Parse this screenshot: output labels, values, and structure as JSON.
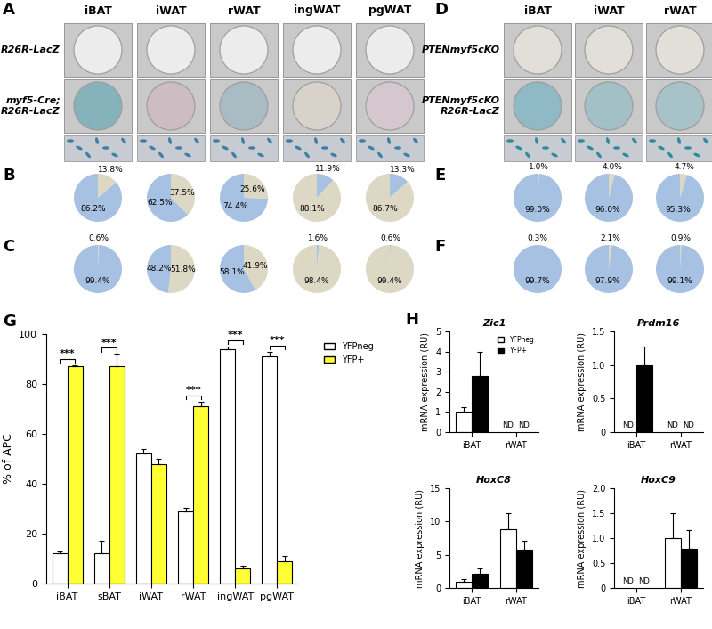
{
  "images": [
    {
      "panel": "A",
      "columns": [
        "iBAT",
        "iWAT",
        "rWAT",
        "ingWAT",
        "pgWAT"
      ],
      "rows": [
        "R26R-LacZ",
        "myf5-Cre;\nR26R-LacZ"
      ]
    },
    {
      "panel": "D",
      "columns": [
        "iBAT",
        "iWAT",
        "rWAT"
      ],
      "rows": [
        "PTENmyf5cKO",
        "PTENmyf5cKO\nR26R-LacZ"
      ]
    }
  ],
  "chart_data": [
    {
      "panel": "B",
      "type": "pie",
      "series": [
        {
          "values": [
            13.8,
            86.2
          ],
          "colors": [
            "#ddd8c4",
            "#a7c1e2"
          ],
          "value_labels": [
            "13.8%",
            "86.2%"
          ]
        },
        {
          "values": [
            37.5,
            62.5
          ],
          "colors": [
            "#ddd8c4",
            "#a7c1e2"
          ],
          "value_labels": [
            "37.5%",
            "62.5%"
          ]
        },
        {
          "values": [
            25.6,
            74.4
          ],
          "colors": [
            "#ddd8c4",
            "#a7c1e2"
          ],
          "value_labels": [
            "25.6%",
            "74.4%"
          ]
        },
        {
          "values": [
            11.9,
            88.1
          ],
          "colors": [
            "#a7c1e2",
            "#ddd8c4"
          ],
          "value_labels": [
            "11.9%",
            "88.1%"
          ]
        },
        {
          "values": [
            13.3,
            86.7
          ],
          "colors": [
            "#a7c1e2",
            "#ddd8c4"
          ],
          "value_labels": [
            "13.3%",
            "86.7%"
          ]
        }
      ]
    },
    {
      "panel": "C",
      "type": "pie",
      "series": [
        {
          "values": [
            0.6,
            99.4
          ],
          "colors": [
            "#ddd8c4",
            "#a7c1e2"
          ],
          "value_labels": [
            "0.6%",
            "99.4%"
          ]
        },
        {
          "values": [
            51.8,
            48.2
          ],
          "colors": [
            "#ddd8c4",
            "#a7c1e2"
          ],
          "value_labels": [
            "51.8%",
            "48.2%"
          ]
        },
        {
          "values": [
            41.9,
            58.1
          ],
          "colors": [
            "#ddd8c4",
            "#a7c1e2"
          ],
          "value_labels": [
            "41.9%",
            "58.1%"
          ]
        },
        {
          "values": [
            1.6,
            98.4
          ],
          "colors": [
            "#a7c1e2",
            "#ddd8c4"
          ],
          "value_labels": [
            "1.6%",
            "98.4%"
          ]
        },
        {
          "values": [
            0.6,
            99.4
          ],
          "colors": [
            "#a7c1e2",
            "#ddd8c4"
          ],
          "value_labels": [
            "0.6%",
            "99.4%"
          ]
        }
      ]
    },
    {
      "panel": "E",
      "type": "pie",
      "series": [
        {
          "values": [
            1.0,
            99.0
          ],
          "colors": [
            "#ddd8c4",
            "#a7c1e2"
          ],
          "value_labels": [
            "1.0%",
            "99.0%"
          ]
        },
        {
          "values": [
            4.0,
            96.0
          ],
          "colors": [
            "#ddd8c4",
            "#a7c1e2"
          ],
          "value_labels": [
            "4.0%",
            "96.0%"
          ]
        },
        {
          "values": [
            4.7,
            95.3
          ],
          "colors": [
            "#ddd8c4",
            "#a7c1e2"
          ],
          "value_labels": [
            "4.7%",
            "95.3%"
          ]
        }
      ]
    },
    {
      "panel": "F",
      "type": "pie",
      "series": [
        {
          "values": [
            0.3,
            99.7
          ],
          "colors": [
            "#ddd8c4",
            "#a7c1e2"
          ],
          "value_labels": [
            "0.3%",
            "99.7%"
          ]
        },
        {
          "values": [
            2.1,
            97.9
          ],
          "colors": [
            "#ddd8c4",
            "#a7c1e2"
          ],
          "value_labels": [
            "2.1%",
            "97.9%"
          ]
        },
        {
          "values": [
            0.9,
            99.1
          ],
          "colors": [
            "#ddd8c4",
            "#a7c1e2"
          ],
          "value_labels": [
            "0.9%",
            "99.1%"
          ]
        }
      ]
    },
    {
      "panel": "G",
      "type": "bar",
      "ylabel": "% of APC",
      "categories": [
        "iBAT",
        "sBAT",
        "iWAT",
        "rWAT",
        "ingWAT",
        "pgWAT"
      ],
      "ylim": [
        0,
        100
      ],
      "yticks": [
        0,
        20,
        40,
        60,
        80,
        100
      ],
      "legend": "upper right",
      "series": [
        {
          "name": "YFPneg",
          "color": "#ffffff",
          "values": [
            12,
            12,
            52,
            29,
            94,
            91
          ],
          "errors": [
            1,
            5,
            2,
            1.5,
            1,
            2
          ]
        },
        {
          "name": "YFP+",
          "color": "#ffff33",
          "values": [
            87,
            87,
            48,
            71,
            6,
            9
          ],
          "errors": [
            0.5,
            5,
            2,
            2,
            1,
            2
          ]
        }
      ],
      "annotations": [
        {
          "category": "iBAT",
          "text": "***"
        },
        {
          "category": "sBAT",
          "text": "***"
        },
        {
          "category": "rWAT",
          "text": "***"
        },
        {
          "category": "ingWAT",
          "text": "***"
        },
        {
          "category": "pgWAT",
          "text": "***"
        }
      ]
    },
    {
      "panel": "H",
      "type": "bar",
      "title": "Zic1",
      "ylabel": "mRNA expression (RU)",
      "categories": [
        "iBAT",
        "rWAT"
      ],
      "ylim": [
        0,
        5
      ],
      "yticks": [
        0,
        1,
        2,
        3,
        4,
        5
      ],
      "legend": "upper right",
      "series": [
        {
          "name": "YFPneg",
          "color": "#ffffff",
          "values": [
            1.0,
            null
          ],
          "errors": [
            0.25,
            null
          ],
          "value_labels": [
            null,
            "ND"
          ]
        },
        {
          "name": "YFP+",
          "color": "#000000",
          "values": [
            2.8,
            null
          ],
          "errors": [
            1.2,
            null
          ],
          "value_labels": [
            null,
            "ND"
          ]
        }
      ]
    },
    {
      "type": "bar",
      "title": "Prdm16",
      "ylabel": "mRNA expression (RU)",
      "categories": [
        "iBAT",
        "rWAT"
      ],
      "ylim": [
        0,
        1.5
      ],
      "yticks": [
        0,
        0.5,
        {
          "value": 1,
          "label": "1.0"
        },
        1.5
      ],
      "series": [
        {
          "name": "YFPneg",
          "color": "#ffffff",
          "values": [
            null,
            null
          ],
          "errors": [
            null,
            null
          ],
          "value_labels": [
            "ND",
            "ND"
          ]
        },
        {
          "name": "YFP+",
          "color": "#000000",
          "values": [
            1.0,
            null
          ],
          "errors": [
            0.28,
            null
          ],
          "value_labels": [
            null,
            "ND"
          ]
        }
      ]
    },
    {
      "type": "bar",
      "title": "HoxC8",
      "ylabel": "mRNA expression (RU)",
      "categories": [
        "iBAT",
        "rWAT"
      ],
      "ylim": [
        0,
        15
      ],
      "yticks": [
        0,
        5,
        10,
        15
      ],
      "series": [
        {
          "name": "YFPneg",
          "color": "#ffffff",
          "values": [
            1.0,
            8.8
          ],
          "errors": [
            0.3,
            2.5
          ]
        },
        {
          "name": "YFP+",
          "color": "#000000",
          "values": [
            2.1,
            5.7
          ],
          "errors": [
            0.8,
            1.4
          ]
        }
      ]
    },
    {
      "type": "bar",
      "title": "HoxC9",
      "ylabel": "mRNA expression (RU)",
      "categories": [
        "iBAT",
        "rWAT"
      ],
      "ylim": [
        0,
        2
      ],
      "yticks": [
        0,
        0.5,
        {
          "value": 1,
          "label": "1.0"
        },
        1.5,
        {
          "value": 2,
          "label": "2.0"
        }
      ],
      "series": [
        {
          "name": "YFPneg",
          "color": "#ffffff",
          "values": [
            null,
            1.0
          ],
          "errors": [
            null,
            0.5
          ],
          "value_labels": [
            "ND",
            null
          ]
        },
        {
          "name": "YFP+",
          "color": "#000000",
          "values": [
            null,
            0.78
          ],
          "errors": [
            null,
            0.38
          ],
          "value_labels": [
            "ND",
            null
          ]
        }
      ]
    }
  ]
}
